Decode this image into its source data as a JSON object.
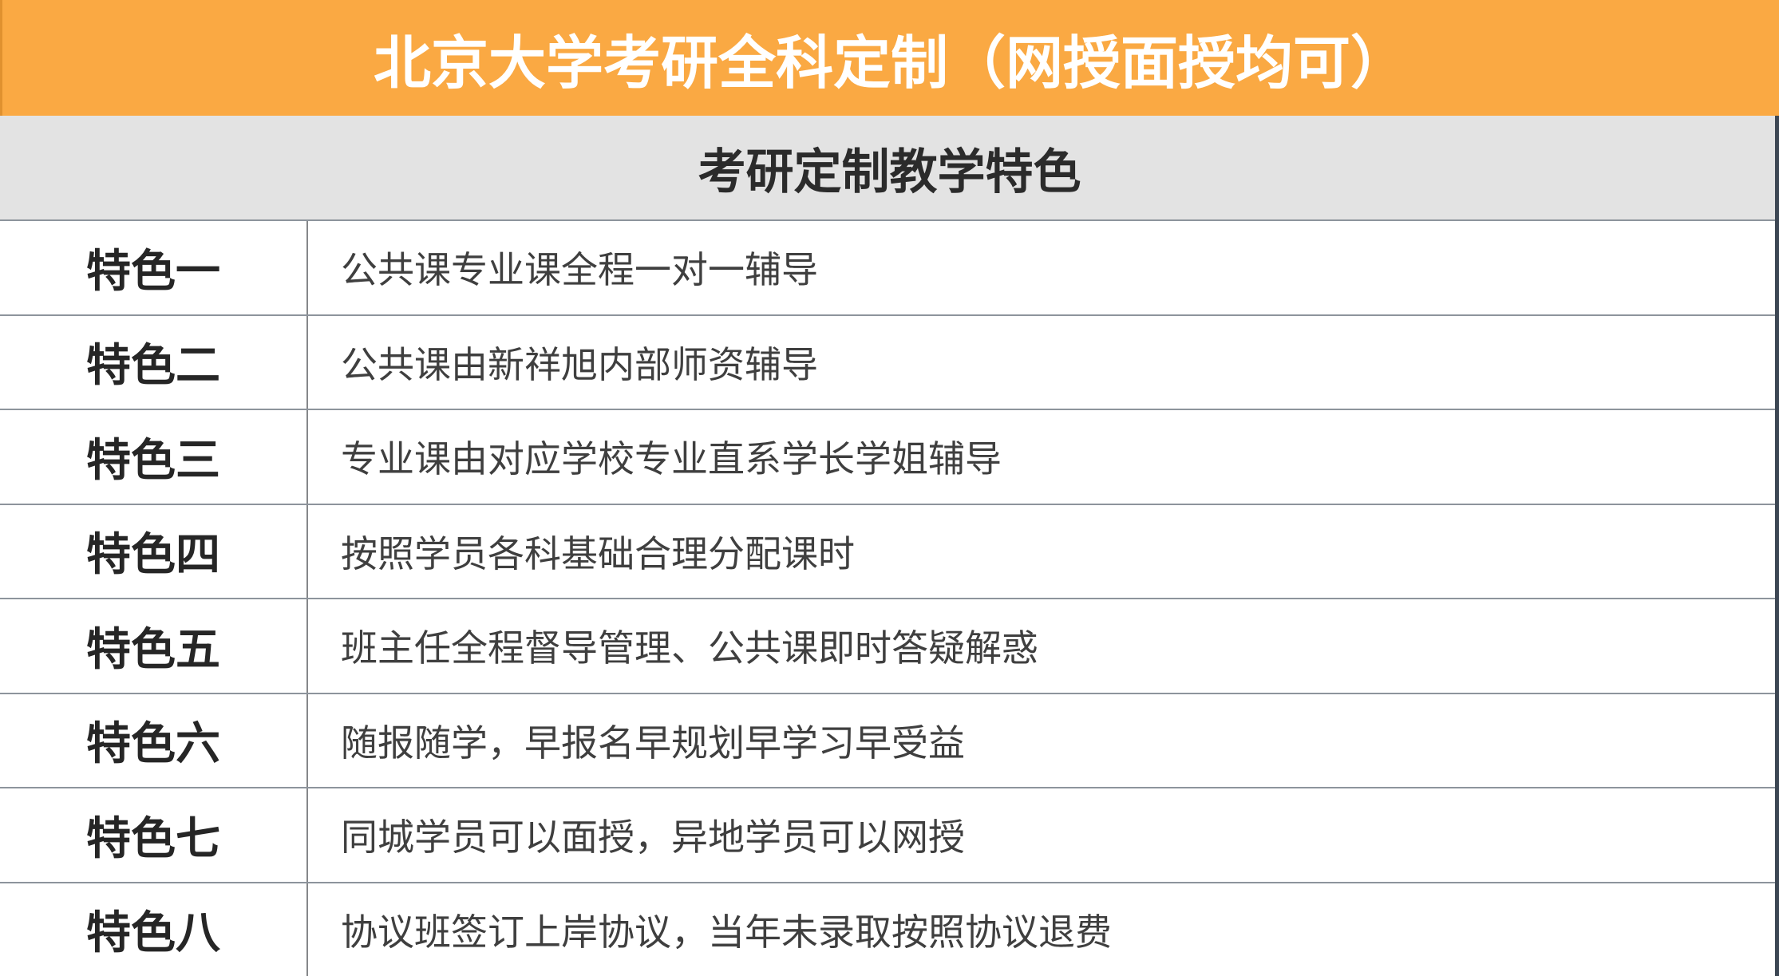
{
  "banner": {
    "title": "北京大学考研全科定制（网授面授均可）"
  },
  "section": {
    "title": "考研定制教学特色"
  },
  "table": {
    "rows": [
      {
        "label": "特色一",
        "description": "公共课专业课全程一对一辅导"
      },
      {
        "label": "特色二",
        "description": "公共课由新祥旭内部师资辅导"
      },
      {
        "label": "特色三",
        "description": "专业课由对应学校专业直系学长学姐辅导"
      },
      {
        "label": "特色四",
        "description": "按照学员各科基础合理分配课时"
      },
      {
        "label": "特色五",
        "description": "班主任全程督导管理、公共课即时答疑解惑"
      },
      {
        "label": "特色六",
        "description": "随报随学，早报名早规划早学习早受益"
      },
      {
        "label": "特色七",
        "description": "同城学员可以面授，异地学员可以网授"
      },
      {
        "label": "特色八",
        "description": "协议班签订上岸协议，当年未录取按照协议退费"
      }
    ]
  },
  "colors": {
    "banner_bg": "#FAA943",
    "banner_accent": "#E0912F",
    "banner_text": "#FFFFFF",
    "section_bg": "#E3E3E3",
    "section_text": "#2B2B2B",
    "row_bg": "#FFFFFF",
    "grid_line": "#8D949C",
    "column_divider": "#85878A",
    "right_border": "#3D4754",
    "label_text": "#262626",
    "description_text": "#3F3F3F"
  }
}
